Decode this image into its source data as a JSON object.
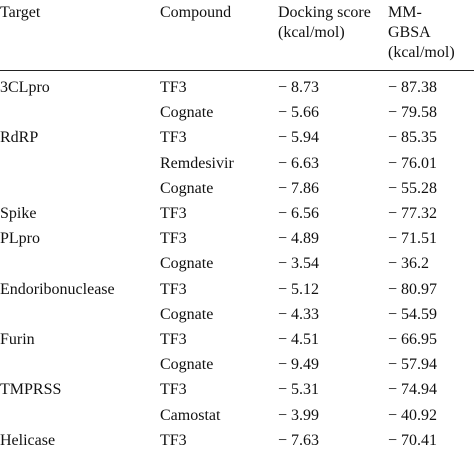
{
  "table": {
    "headers": [
      [
        "Target"
      ],
      [
        "Compound"
      ],
      [
        "Docking score",
        "(kcal/mol)"
      ],
      [
        "MM-",
        "GBSA",
        "(kcal/mol)"
      ]
    ],
    "groups": [
      {
        "target": "3CLpro",
        "rows": [
          [
            "TF3",
            "− 8.73",
            "− 87.38"
          ],
          [
            "Cognate",
            "− 5.66",
            "− 79.58"
          ]
        ]
      },
      {
        "target": "RdRP",
        "rows": [
          [
            "TF3",
            "− 5.94",
            "− 85.35"
          ],
          [
            "Remdesivir",
            "− 6.63",
            "− 76.01"
          ],
          [
            "Cognate",
            "− 7.86",
            "− 55.28"
          ]
        ]
      },
      {
        "target": "Spike",
        "rows": [
          [
            "TF3",
            "− 6.56",
            "− 77.32"
          ]
        ]
      },
      {
        "target": "PLpro",
        "rows": [
          [
            "TF3",
            "− 4.89",
            "− 71.51"
          ],
          [
            "Cognate",
            "− 3.54",
            "− 36.2"
          ]
        ]
      },
      {
        "target": "Endoribonuclease",
        "rows": [
          [
            "TF3",
            "− 5.12",
            "− 80.97"
          ],
          [
            "Cognate",
            "− 4.33",
            "− 54.59"
          ]
        ]
      },
      {
        "target": "Furin",
        "rows": [
          [
            "TF3",
            "− 4.51",
            "− 66.95"
          ],
          [
            "Cognate",
            "− 9.49",
            "− 57.94"
          ]
        ]
      },
      {
        "target": "TMPRSS",
        "rows": [
          [
            "TF3",
            "− 5.31",
            "− 74.94"
          ],
          [
            "Camostat",
            "− 3.99",
            "− 40.92"
          ]
        ]
      },
      {
        "target": "Helicase",
        "rows": [
          [
            "TF3",
            "− 7.63",
            "− 70.41"
          ]
        ]
      }
    ]
  }
}
